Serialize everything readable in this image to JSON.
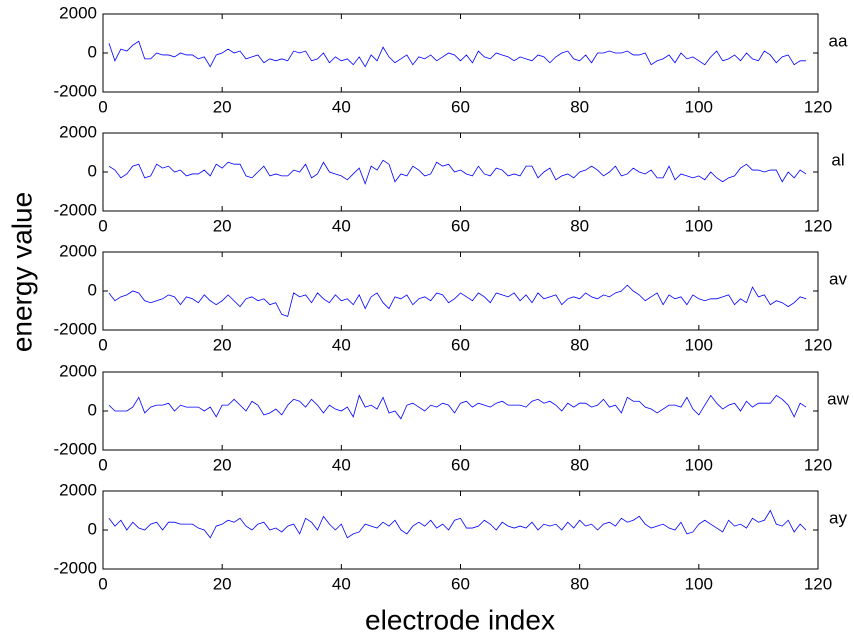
{
  "ylabel": "energy value",
  "xlabel": "electrode index",
  "chart_data": [
    {
      "type": "line",
      "xlim": [
        0,
        120
      ],
      "xticks": [
        0,
        20,
        40,
        60,
        80,
        100,
        120
      ],
      "ylim": [
        -2000,
        2000
      ],
      "yticks": [
        -2000,
        0,
        2000
      ],
      "x": [
        1,
        2,
        3,
        4,
        5,
        6,
        7,
        8,
        9,
        10,
        11,
        12,
        13,
        14,
        15,
        16,
        17,
        18,
        19,
        20,
        21,
        22,
        23,
        24,
        25,
        26,
        27,
        28,
        29,
        30,
        31,
        32,
        33,
        34,
        35,
        36,
        37,
        38,
        39,
        40,
        41,
        42,
        43,
        44,
        45,
        46,
        47,
        48,
        49,
        50,
        51,
        52,
        53,
        54,
        55,
        56,
        57,
        58,
        59,
        60,
        61,
        62,
        63,
        64,
        65,
        66,
        67,
        68,
        69,
        70,
        71,
        72,
        73,
        74,
        75,
        76,
        77,
        78,
        79,
        80,
        81,
        82,
        83,
        84,
        85,
        86,
        87,
        88,
        89,
        90,
        91,
        92,
        93,
        94,
        95,
        96,
        97,
        98,
        99,
        100,
        101,
        102,
        103,
        104,
        105,
        106,
        107,
        108,
        109,
        110,
        111,
        112,
        113,
        114,
        115,
        116,
        117,
        118
      ],
      "series": [
        {
          "name": "aa",
          "color": "#0000ff",
          "values": [
            500,
            -400,
            200,
            100,
            400,
            600,
            -300,
            -300,
            0,
            -100,
            -100,
            -200,
            0,
            -100,
            -100,
            -300,
            -200,
            -700,
            -100,
            0,
            200,
            0,
            100,
            -300,
            -200,
            -100,
            -500,
            -300,
            -400,
            -300,
            -400,
            100,
            0,
            100,
            -400,
            -300,
            0,
            -500,
            -200,
            -400,
            -300,
            -600,
            -200,
            -700,
            -100,
            -400,
            300,
            -200,
            -500,
            -300,
            -100,
            -600,
            -200,
            -300,
            -100,
            -400,
            -200,
            0,
            -100,
            -400,
            -100,
            -500,
            100,
            -200,
            -300,
            0,
            -100,
            -200,
            -400,
            -200,
            -300,
            -400,
            -100,
            -200,
            -500,
            -200,
            0,
            100,
            -300,
            -400,
            -100,
            -500,
            0,
            0,
            100,
            0,
            0,
            100,
            -100,
            -100,
            0,
            -600,
            -400,
            -300,
            -100,
            -500,
            0,
            -300,
            -200,
            -400,
            -600,
            -200,
            100,
            -400,
            -300,
            -100,
            -400,
            0,
            -300,
            -400,
            100,
            -100,
            -500,
            -200,
            -100,
            -600,
            -400,
            -400
          ]
        }
      ]
    },
    {
      "type": "line",
      "xlim": [
        0,
        120
      ],
      "xticks": [
        0,
        20,
        40,
        60,
        80,
        100,
        120
      ],
      "ylim": [
        -2000,
        2000
      ],
      "yticks": [
        -2000,
        0,
        2000
      ],
      "x": [
        1,
        2,
        3,
        4,
        5,
        6,
        7,
        8,
        9,
        10,
        11,
        12,
        13,
        14,
        15,
        16,
        17,
        18,
        19,
        20,
        21,
        22,
        23,
        24,
        25,
        26,
        27,
        28,
        29,
        30,
        31,
        32,
        33,
        34,
        35,
        36,
        37,
        38,
        39,
        40,
        41,
        42,
        43,
        44,
        45,
        46,
        47,
        48,
        49,
        50,
        51,
        52,
        53,
        54,
        55,
        56,
        57,
        58,
        59,
        60,
        61,
        62,
        63,
        64,
        65,
        66,
        67,
        68,
        69,
        70,
        71,
        72,
        73,
        74,
        75,
        76,
        77,
        78,
        79,
        80,
        81,
        82,
        83,
        84,
        85,
        86,
        87,
        88,
        89,
        90,
        91,
        92,
        93,
        94,
        95,
        96,
        97,
        98,
        99,
        100,
        101,
        102,
        103,
        104,
        105,
        106,
        107,
        108,
        109,
        110,
        111,
        112,
        113,
        114,
        115,
        116,
        117,
        118
      ],
      "series": [
        {
          "name": "al",
          "color": "#0000ff",
          "values": [
            300,
            100,
            -300,
            -100,
            300,
            400,
            -300,
            -200,
            400,
            200,
            300,
            0,
            100,
            -200,
            -100,
            -100,
            100,
            -200,
            400,
            200,
            500,
            400,
            400,
            -200,
            -300,
            0,
            300,
            -200,
            -100,
            -200,
            -200,
            100,
            0,
            400,
            -300,
            -100,
            500,
            0,
            -100,
            -200,
            -400,
            -100,
            200,
            -600,
            300,
            100,
            600,
            400,
            -500,
            -100,
            -200,
            300,
            100,
            -200,
            -100,
            500,
            300,
            400,
            0,
            100,
            -100,
            -200,
            300,
            -100,
            -200,
            200,
            100,
            -200,
            -100,
            -200,
            300,
            300,
            -300,
            0,
            200,
            -400,
            -200,
            -100,
            -300,
            0,
            100,
            300,
            100,
            -200,
            0,
            300,
            -200,
            -100,
            200,
            0,
            -100,
            100,
            -300,
            -300,
            300,
            -400,
            -100,
            -200,
            -300,
            -200,
            -400,
            0,
            -300,
            -500,
            -300,
            -200,
            200,
            400,
            100,
            100,
            0,
            100,
            100,
            -500,
            0,
            -300,
            100,
            -100
          ]
        }
      ]
    },
    {
      "type": "line",
      "xlim": [
        0,
        120
      ],
      "xticks": [
        0,
        20,
        40,
        60,
        80,
        100,
        120
      ],
      "ylim": [
        -2000,
        2000
      ],
      "yticks": [
        -2000,
        0,
        2000
      ],
      "x": [
        1,
        2,
        3,
        4,
        5,
        6,
        7,
        8,
        9,
        10,
        11,
        12,
        13,
        14,
        15,
        16,
        17,
        18,
        19,
        20,
        21,
        22,
        23,
        24,
        25,
        26,
        27,
        28,
        29,
        30,
        31,
        32,
        33,
        34,
        35,
        36,
        37,
        38,
        39,
        40,
        41,
        42,
        43,
        44,
        45,
        46,
        47,
        48,
        49,
        50,
        51,
        52,
        53,
        54,
        55,
        56,
        57,
        58,
        59,
        60,
        61,
        62,
        63,
        64,
        65,
        66,
        67,
        68,
        69,
        70,
        71,
        72,
        73,
        74,
        75,
        76,
        77,
        78,
        79,
        80,
        81,
        82,
        83,
        84,
        85,
        86,
        87,
        88,
        89,
        90,
        91,
        92,
        93,
        94,
        95,
        96,
        97,
        98,
        99,
        100,
        101,
        102,
        103,
        104,
        105,
        106,
        107,
        108,
        109,
        110,
        111,
        112,
        113,
        114,
        115,
        116,
        117,
        118
      ],
      "series": [
        {
          "name": "av",
          "color": "#0000ff",
          "values": [
            -100,
            -500,
            -300,
            -200,
            0,
            -100,
            -500,
            -600,
            -500,
            -400,
            -200,
            -300,
            -700,
            -300,
            -400,
            -600,
            -200,
            -500,
            -700,
            -500,
            -200,
            -500,
            -800,
            -400,
            -300,
            -500,
            -400,
            -700,
            -600,
            -1200,
            -1300,
            -100,
            -300,
            -200,
            -600,
            -100,
            -400,
            -600,
            -200,
            -500,
            -400,
            -700,
            -200,
            -900,
            -300,
            -100,
            -600,
            -900,
            -300,
            -400,
            -200,
            -700,
            -400,
            -300,
            -500,
            -100,
            -200,
            -600,
            -400,
            -100,
            -300,
            -500,
            -100,
            -300,
            -600,
            -100,
            -200,
            -300,
            -100,
            -500,
            -200,
            -600,
            -100,
            -400,
            -300,
            -200,
            -700,
            -400,
            -300,
            -400,
            -100,
            -300,
            -400,
            -200,
            -300,
            -100,
            0,
            300,
            0,
            -200,
            -500,
            -300,
            -100,
            -700,
            -200,
            -400,
            -300,
            -700,
            -200,
            -400,
            -500,
            -400,
            -400,
            -300,
            -200,
            -700,
            -400,
            -600,
            200,
            -300,
            -200,
            -700,
            -500,
            -600,
            -800,
            -600,
            -300,
            -400
          ]
        }
      ]
    },
    {
      "type": "line",
      "xlim": [
        0,
        120
      ],
      "xticks": [
        0,
        20,
        40,
        60,
        80,
        100,
        120
      ],
      "ylim": [
        -2000,
        2000
      ],
      "yticks": [
        -2000,
        0,
        2000
      ],
      "x": [
        1,
        2,
        3,
        4,
        5,
        6,
        7,
        8,
        9,
        10,
        11,
        12,
        13,
        14,
        15,
        16,
        17,
        18,
        19,
        20,
        21,
        22,
        23,
        24,
        25,
        26,
        27,
        28,
        29,
        30,
        31,
        32,
        33,
        34,
        35,
        36,
        37,
        38,
        39,
        40,
        41,
        42,
        43,
        44,
        45,
        46,
        47,
        48,
        49,
        50,
        51,
        52,
        53,
        54,
        55,
        56,
        57,
        58,
        59,
        60,
        61,
        62,
        63,
        64,
        65,
        66,
        67,
        68,
        69,
        70,
        71,
        72,
        73,
        74,
        75,
        76,
        77,
        78,
        79,
        80,
        81,
        82,
        83,
        84,
        85,
        86,
        87,
        88,
        89,
        90,
        91,
        92,
        93,
        94,
        95,
        96,
        97,
        98,
        99,
        100,
        101,
        102,
        103,
        104,
        105,
        106,
        107,
        108,
        109,
        110,
        111,
        112,
        113,
        114,
        115,
        116,
        117,
        118
      ],
      "series": [
        {
          "name": "aw",
          "color": "#0000ff",
          "values": [
            300,
            0,
            0,
            0,
            200,
            700,
            -100,
            200,
            300,
            300,
            400,
            0,
            300,
            200,
            200,
            200,
            0,
            200,
            -300,
            300,
            300,
            600,
            300,
            0,
            500,
            300,
            -200,
            -100,
            100,
            -200,
            300,
            600,
            500,
            200,
            600,
            300,
            -100,
            300,
            100,
            0,
            200,
            -300,
            800,
            200,
            300,
            100,
            700,
            -100,
            0,
            -400,
            300,
            400,
            200,
            0,
            300,
            200,
            400,
            300,
            -100,
            400,
            500,
            200,
            400,
            300,
            200,
            400,
            500,
            300,
            300,
            300,
            200,
            500,
            600,
            400,
            500,
            300,
            0,
            400,
            200,
            400,
            400,
            200,
            300,
            600,
            200,
            300,
            -100,
            700,
            500,
            500,
            200,
            100,
            -100,
            100,
            300,
            300,
            200,
            700,
            100,
            -200,
            300,
            800,
            400,
            100,
            300,
            400,
            0,
            500,
            200,
            400,
            400,
            400,
            800,
            600,
            300,
            -300,
            400,
            200
          ]
        }
      ]
    },
    {
      "type": "line",
      "xlim": [
        0,
        120
      ],
      "xticks": [
        0,
        20,
        40,
        60,
        80,
        100,
        120
      ],
      "ylim": [
        -2000,
        2000
      ],
      "yticks": [
        -2000,
        0,
        2000
      ],
      "x": [
        1,
        2,
        3,
        4,
        5,
        6,
        7,
        8,
        9,
        10,
        11,
        12,
        13,
        14,
        15,
        16,
        17,
        18,
        19,
        20,
        21,
        22,
        23,
        24,
        25,
        26,
        27,
        28,
        29,
        30,
        31,
        32,
        33,
        34,
        35,
        36,
        37,
        38,
        39,
        40,
        41,
        42,
        43,
        44,
        45,
        46,
        47,
        48,
        49,
        50,
        51,
        52,
        53,
        54,
        55,
        56,
        57,
        58,
        59,
        60,
        61,
        62,
        63,
        64,
        65,
        66,
        67,
        68,
        69,
        70,
        71,
        72,
        73,
        74,
        75,
        76,
        77,
        78,
        79,
        80,
        81,
        82,
        83,
        84,
        85,
        86,
        87,
        88,
        89,
        90,
        91,
        92,
        93,
        94,
        95,
        96,
        97,
        98,
        99,
        100,
        101,
        102,
        103,
        104,
        105,
        106,
        107,
        108,
        109,
        110,
        111,
        112,
        113,
        114,
        115,
        116,
        117,
        118
      ],
      "series": [
        {
          "name": "ay",
          "color": "#0000ff",
          "values": [
            600,
            200,
            500,
            0,
            400,
            100,
            0,
            300,
            400,
            0,
            400,
            400,
            300,
            300,
            300,
            100,
            0,
            -400,
            200,
            300,
            500,
            400,
            600,
            200,
            0,
            300,
            400,
            0,
            100,
            -100,
            200,
            300,
            -200,
            600,
            400,
            0,
            700,
            300,
            0,
            300,
            -400,
            -200,
            -100,
            300,
            200,
            100,
            400,
            200,
            500,
            0,
            -200,
            200,
            400,
            200,
            500,
            100,
            300,
            0,
            500,
            600,
            100,
            100,
            200,
            500,
            300,
            0,
            400,
            200,
            100,
            200,
            100,
            400,
            0,
            300,
            200,
            300,
            0,
            400,
            100,
            500,
            200,
            300,
            0,
            300,
            400,
            200,
            600,
            400,
            500,
            700,
            300,
            100,
            200,
            300,
            100,
            0,
            400,
            -200,
            -100,
            300,
            500,
            300,
            100,
            -100,
            500,
            200,
            300,
            100,
            600,
            400,
            500,
            1000,
            300,
            200,
            500,
            -100,
            300,
            0
          ]
        }
      ]
    }
  ]
}
